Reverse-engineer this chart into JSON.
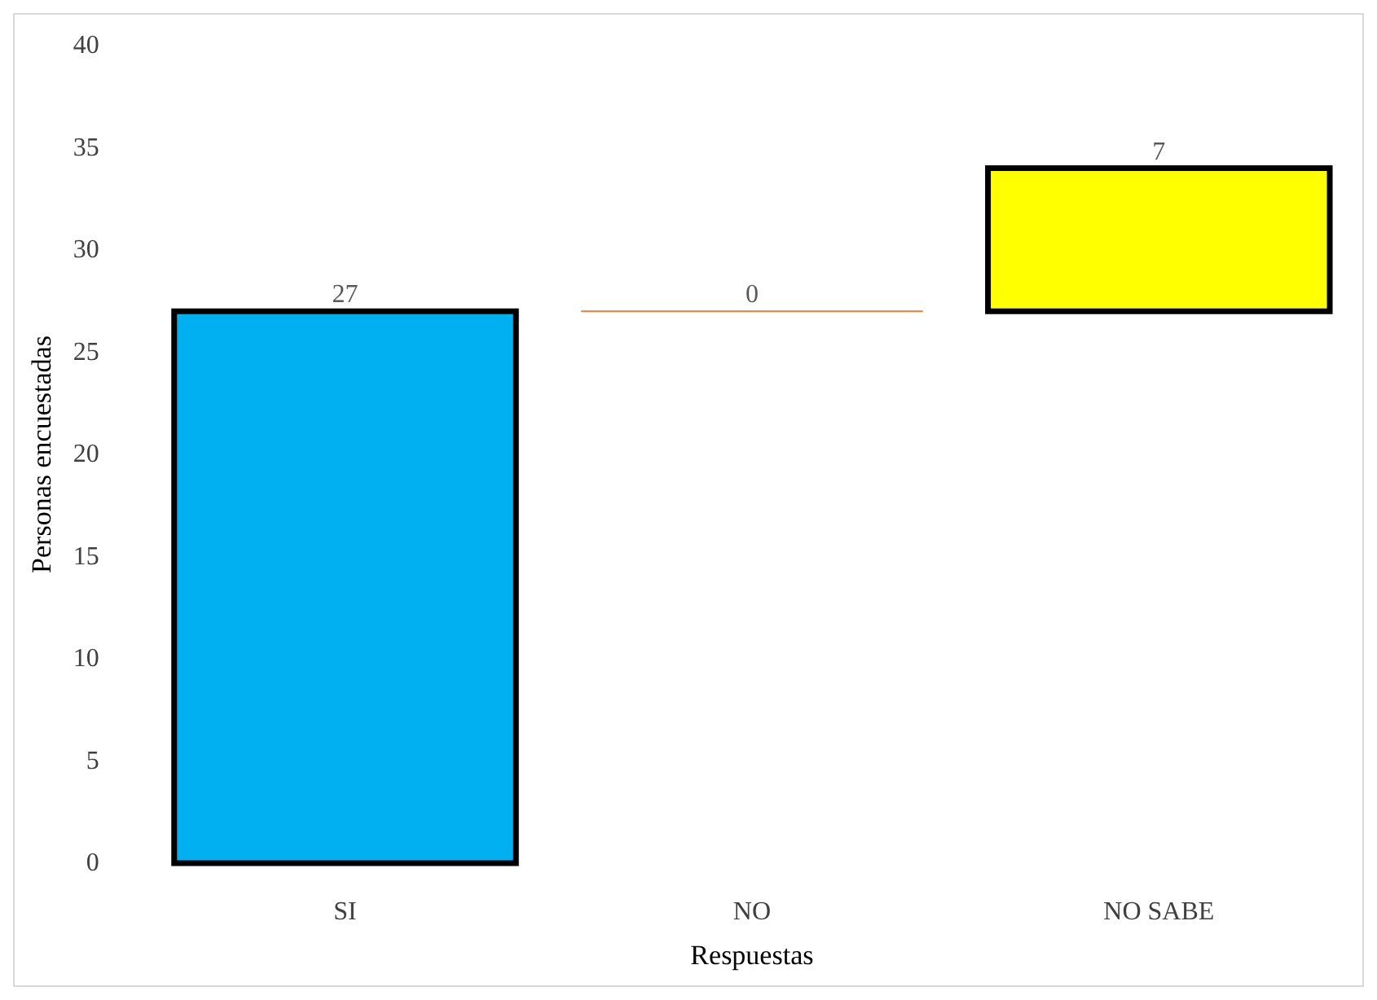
{
  "chart_data": {
    "type": "bar",
    "xlabel": "Respuestas",
    "ylabel": "Personas encuestadas",
    "categories": [
      "SI",
      "NO",
      "NO SABE"
    ],
    "values": [
      27,
      0,
      7
    ],
    "base": [
      0,
      27,
      27
    ],
    "colors": [
      "#00b0f0",
      "#ed7d31",
      "#ffff00"
    ],
    "ylim": [
      0,
      40
    ],
    "yticks": [
      0,
      5,
      10,
      15,
      20,
      25,
      30,
      35,
      40
    ],
    "data_labels": true,
    "legend": false
  }
}
